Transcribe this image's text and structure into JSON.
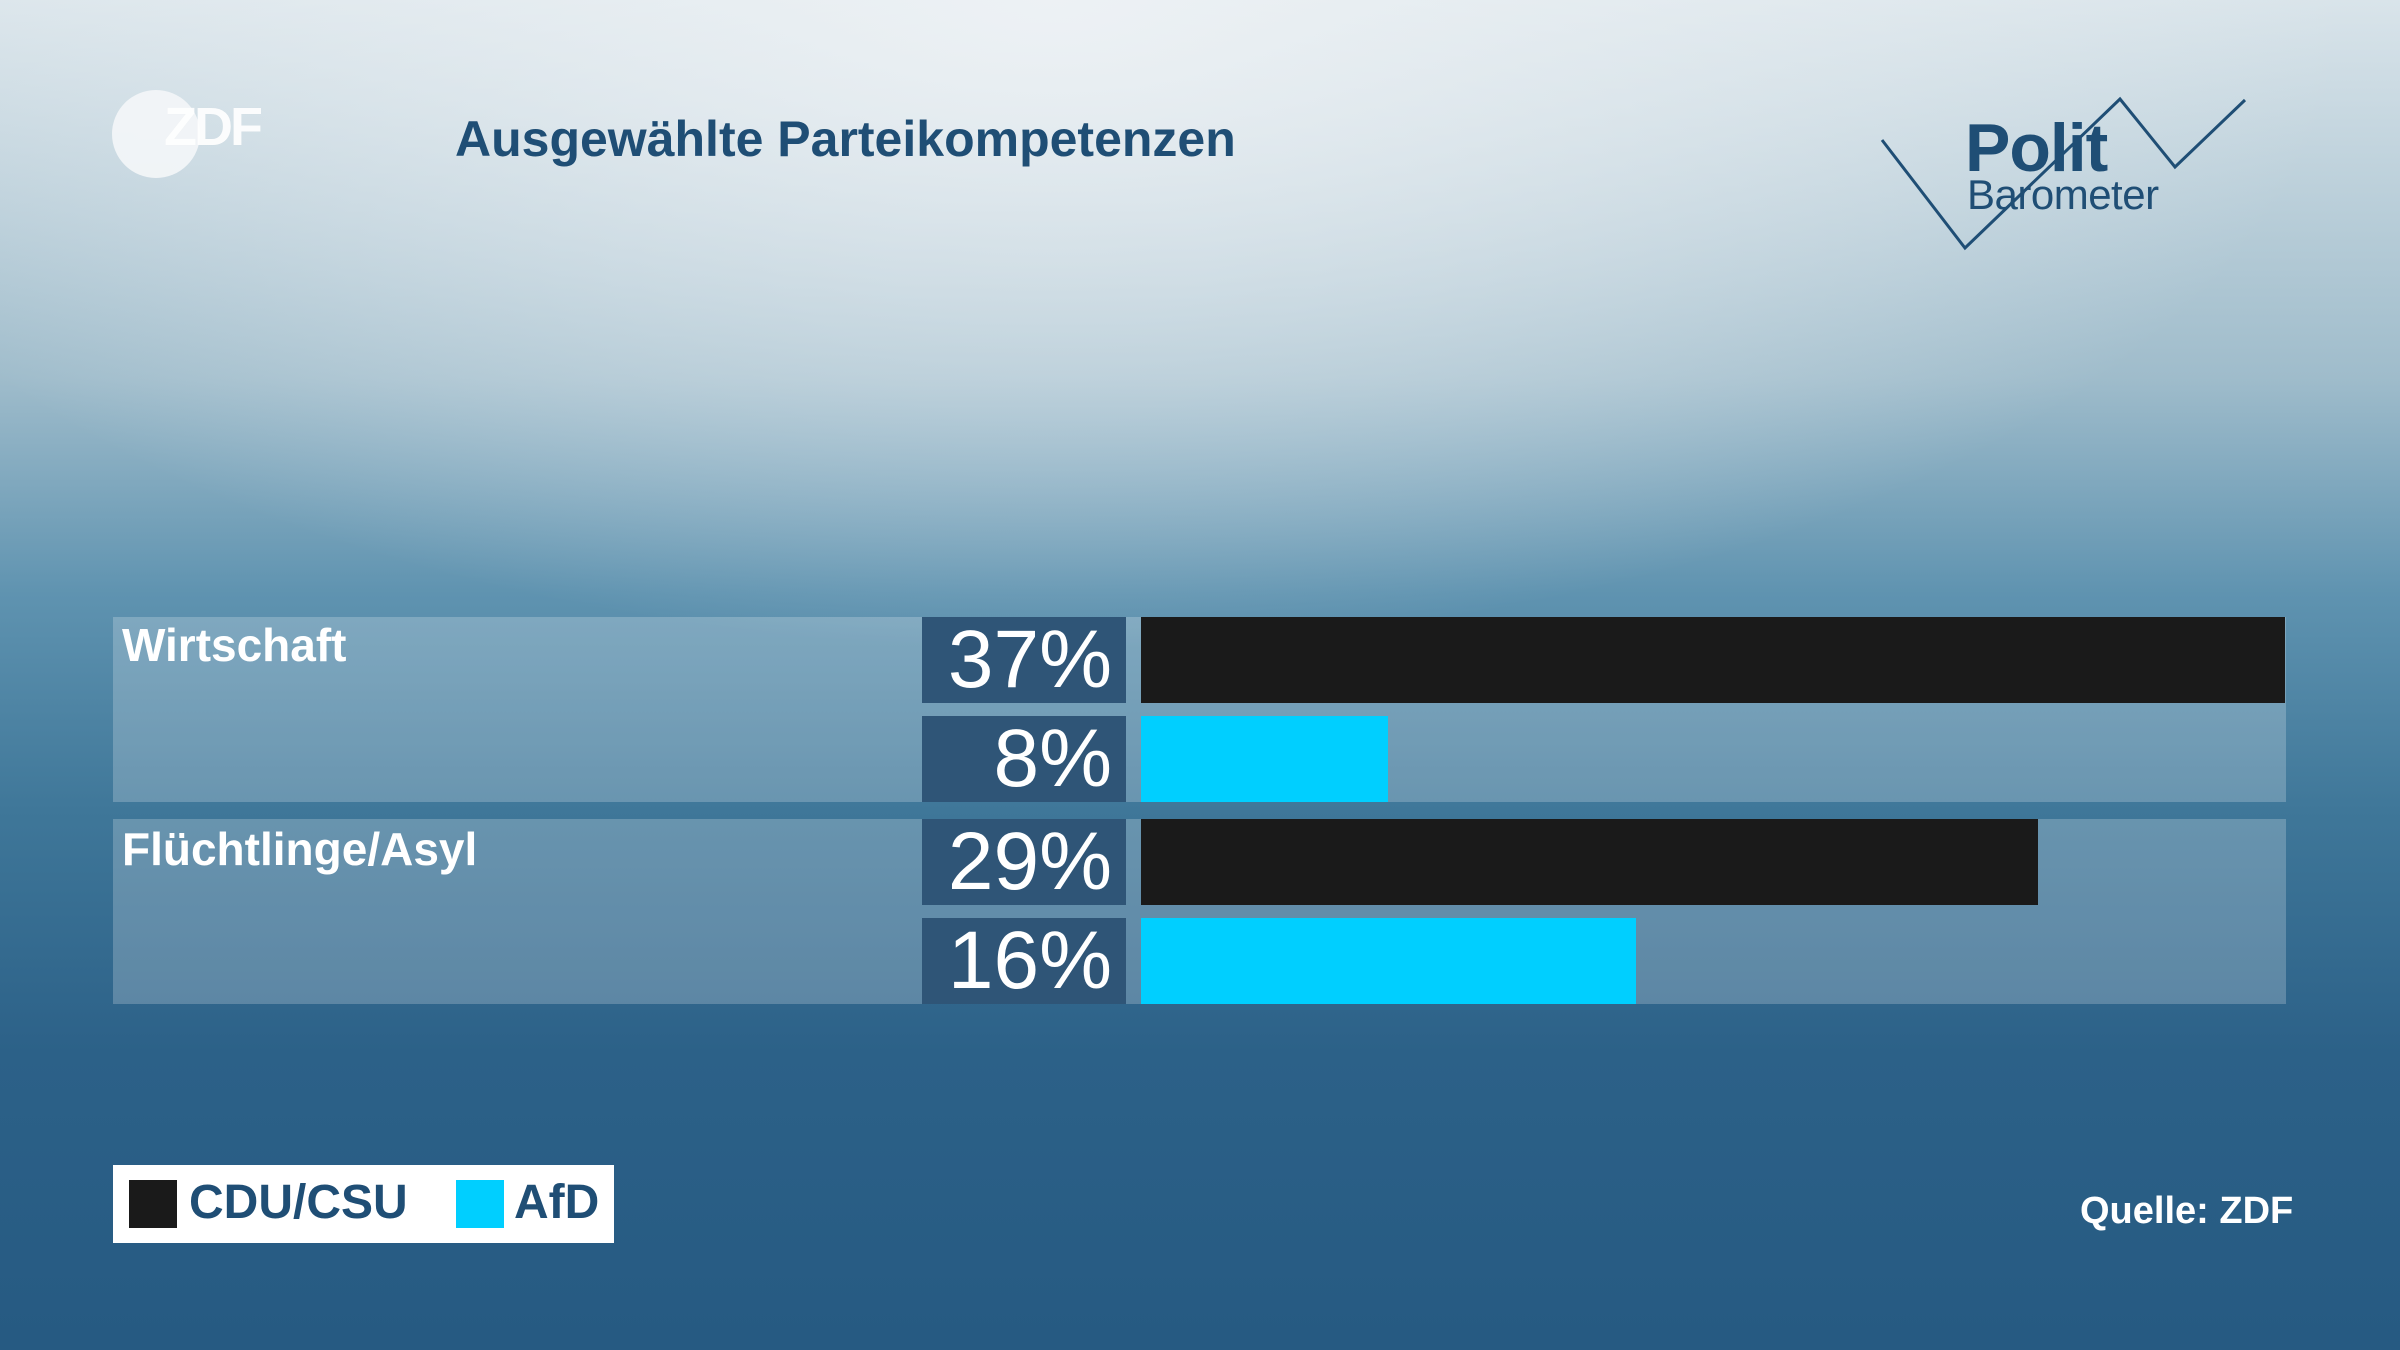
{
  "header": {
    "brand": "ZDF",
    "title": "Ausgewählte Parteikompetenzen",
    "logo": {
      "line1": "Polit",
      "line2": "Barometer"
    }
  },
  "chart_data": {
    "type": "bar",
    "title": "Ausgewählte Parteikompetenzen",
    "categories": [
      "Wirtschaft",
      "Flüchtlinge/Asyl"
    ],
    "series": [
      {
        "name": "CDU/CSU",
        "color": "#1a1a1a",
        "values": [
          37,
          29
        ],
        "labels": [
          "37%",
          "29%"
        ]
      },
      {
        "name": "AfD",
        "color": "#00cfff",
        "values": [
          8,
          16
        ],
        "labels": [
          "8%",
          "16%"
        ]
      }
    ],
    "ylim": [
      0,
      37
    ],
    "grid": false,
    "legend": "bottom-left"
  },
  "footer": {
    "source": "Quelle: ZDF"
  }
}
